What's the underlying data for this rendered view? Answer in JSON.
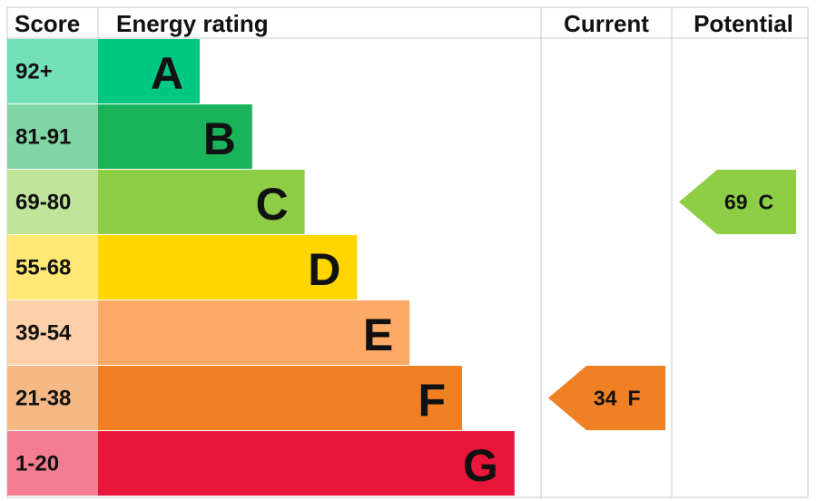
{
  "header": {
    "score": "Score",
    "rating": "Energy rating",
    "current": "Current",
    "potential": "Potential"
  },
  "bands": [
    {
      "score": "92+",
      "rating": "A",
      "color": "#00c781"
    },
    {
      "score": "81-91",
      "rating": "B",
      "color": "#19b459"
    },
    {
      "score": "69-80",
      "rating": "C",
      "color": "#8dce46"
    },
    {
      "score": "55-68",
      "rating": "D",
      "color": "#ffd500"
    },
    {
      "score": "39-54",
      "rating": "E",
      "color": "#fcaa65"
    },
    {
      "score": "21-38",
      "rating": "F",
      "color": "#ef8023"
    },
    {
      "score": "1-20",
      "rating": "G",
      "color": "#e9153b"
    }
  ],
  "current": {
    "score": 34,
    "rating": "F"
  },
  "potential": {
    "score": 69,
    "rating": "C"
  }
}
